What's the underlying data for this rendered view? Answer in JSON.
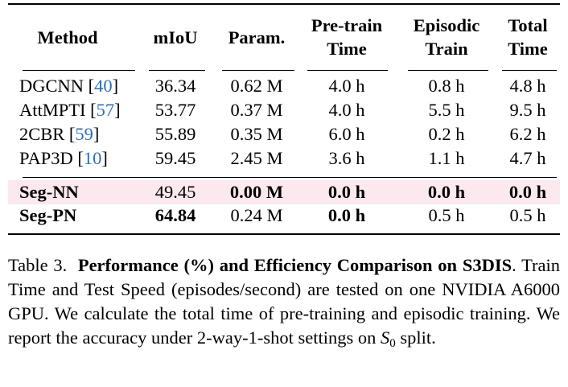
{
  "table": {
    "headers": {
      "method": "Method",
      "miou": "mIoU",
      "param": "Param.",
      "pretrain_line1": "Pre-train",
      "pretrain_line2": "Time",
      "episodic_line1": "Episodic",
      "episodic_line2": "Train",
      "total_line1": "Total",
      "total_line2": "Time"
    },
    "rows": [
      {
        "method": "DGCNN",
        "cite": "40",
        "miou": "36.34",
        "param": "0.62 M",
        "pretrain": "4.0 h",
        "episodic": "0.8 h",
        "total": "4.8 h"
      },
      {
        "method": "AttMPTI",
        "cite": "57",
        "miou": "53.77",
        "param": "0.37 M",
        "pretrain": "4.0 h",
        "episodic": "5.5 h",
        "total": "9.5 h"
      },
      {
        "method": "2CBR",
        "cite": "59",
        "miou": "55.89",
        "param": "0.35 M",
        "pretrain": "6.0 h",
        "episodic": "0.2 h",
        "total": "6.2 h"
      },
      {
        "method": "PAP3D",
        "cite": "10",
        "miou": "59.45",
        "param": "2.45 M",
        "pretrain": "3.6 h",
        "episodic": "1.1 h",
        "total": "4.7 h"
      }
    ],
    "ours": [
      {
        "method": "Seg-NN",
        "miou": "49.45",
        "param": "0.00 M",
        "pretrain": "0.0 h",
        "episodic": "0.0 h",
        "total": "0.0 h"
      },
      {
        "method": "Seg-PN",
        "miou": "64.84",
        "param": "0.24 M",
        "pretrain": "0.0 h",
        "episodic": "0.5 h",
        "total": "0.5 h"
      }
    ],
    "highlight_color": "#fbe9ee",
    "cite_color": "#2f6fb3"
  },
  "caption": {
    "label": "Table 3.",
    "title": "Performance (%) and Efficiency Comparison on S3DIS",
    "body_1": ". Train Time and Test Speed (episodes/second) are tested on one NVIDIA A6000 GPU. We calculate the total time of pre-training and episodic training.  We report the accuracy under 2-way-1-shot settings on ",
    "split_var": "S",
    "split_sub": "0",
    "body_2": " split."
  }
}
